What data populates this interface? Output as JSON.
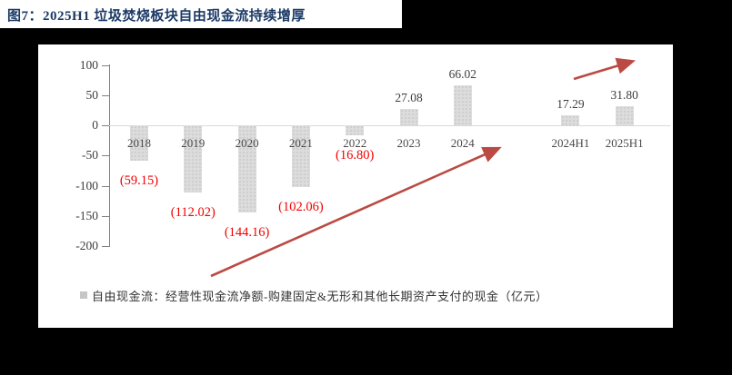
{
  "title": "图7：2025H1 垃圾焚烧板块自由现金流持续增厚",
  "legend": {
    "label": "自由现金流：经营性现金流净额-购建固定&无形和其他长期资产支付的现金（亿元）"
  },
  "colors": {
    "page_bg": "#000000",
    "card_bg": "#FFFFFF",
    "title": "#1B3A66",
    "negative_label": "#F20000",
    "positive_label": "#3D3D3D",
    "tick_label": "#3D3D3D",
    "category_label": "#4A4A4A",
    "axis": "#808080",
    "gridline": "#D9D9D9",
    "bar": "#DCDCDC",
    "bar_dot": "#C9C9C9",
    "arrow": "#BB4A44",
    "legend_text": "#333333"
  },
  "chart_data": {
    "type": "bar",
    "categories": [
      "2018",
      "2019",
      "2020",
      "2021",
      "2022",
      "2023",
      "2024",
      "2024H1",
      "2025H1"
    ],
    "values": [
      -59.15,
      -112.02,
      -144.16,
      -102.06,
      -16.8,
      27.08,
      66.02,
      17.29,
      31.8
    ],
    "value_labels": [
      "(59.15)",
      "(112.02)",
      "(144.16)",
      "(102.06)",
      "(16.80)",
      "27.08",
      "66.02",
      "17.29",
      "31.80"
    ],
    "unit": "亿元",
    "y_ticks": [
      100,
      50,
      0,
      -50,
      -100,
      -150,
      -200
    ],
    "ylim": [
      -200,
      100
    ],
    "grid": "zero-line-only",
    "legend_position": "bottom",
    "group_gap_after_index": 6,
    "annotations": [
      "red upward trend arrow spanning 2018 through 2024",
      "short red upward trend arrow above 2024H1-2025H1"
    ]
  }
}
